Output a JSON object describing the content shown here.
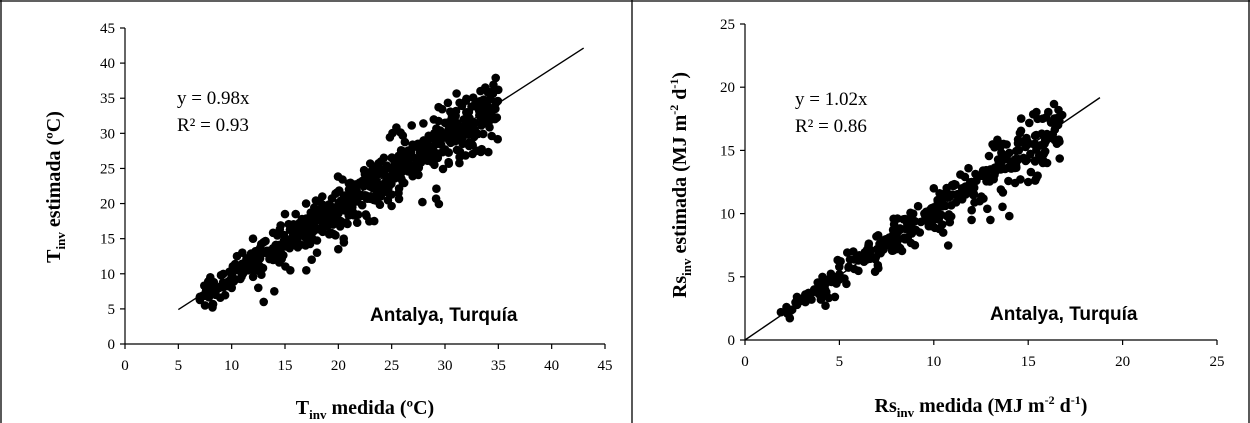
{
  "chart_data": [
    {
      "type": "scatter",
      "xlabel_main": "T",
      "xlabel_sub": "inv",
      "xlabel_rest": " medida (ºC)",
      "ylabel_main": "T",
      "ylabel_sub": "inv",
      "ylabel_rest": " estimada (ºC)",
      "xlim": [
        0,
        45
      ],
      "ylim": [
        0,
        45
      ],
      "xticks": [
        "0",
        "5",
        "10",
        "15",
        "20",
        "25",
        "30",
        "35",
        "40",
        "45"
      ],
      "yticks": [
        "0",
        "5",
        "10",
        "15",
        "20",
        "25",
        "30",
        "35",
        "40",
        "45"
      ],
      "equation": "y = 0.98x",
      "r2": "R² = 0.93",
      "site_label": "Antalya, Turquía",
      "fit_line": {
        "slope": 0.98,
        "x_range": [
          5,
          43
        ]
      },
      "grid": false,
      "point_color": "#000000",
      "n_points": 620,
      "x_range": [
        7,
        35
      ],
      "scatter_sd": 1.6,
      "points": [
        [
          7,
          6.5
        ],
        [
          7.5,
          5.5
        ],
        [
          8,
          9.5
        ],
        [
          8.2,
          5.2
        ],
        [
          8.5,
          7.5
        ],
        [
          9,
          9.8
        ],
        [
          9.5,
          8.5
        ],
        [
          10,
          9
        ],
        [
          10.5,
          12.5
        ],
        [
          11,
          13
        ],
        [
          11.5,
          10.5
        ],
        [
          12,
          15
        ],
        [
          12.5,
          8
        ],
        [
          13,
          6
        ],
        [
          13,
          14.5
        ],
        [
          14,
          7.5
        ],
        [
          15,
          18.5
        ],
        [
          15.5,
          10.5
        ],
        [
          16,
          18.5
        ],
        [
          17,
          10.5
        ],
        [
          17.5,
          12
        ],
        [
          18,
          13
        ],
        [
          18.5,
          21
        ],
        [
          19.5,
          17
        ],
        [
          20,
          13.5
        ],
        [
          20.5,
          15
        ],
        [
          21,
          22
        ],
        [
          22,
          23
        ],
        [
          23,
          24.5
        ],
        [
          24,
          26
        ],
        [
          25,
          26.5
        ],
        [
          26,
          27.5
        ],
        [
          27,
          28
        ],
        [
          28,
          29
        ],
        [
          29,
          30
        ],
        [
          30,
          31.5
        ],
        [
          31,
          32.5
        ],
        [
          32,
          33
        ],
        [
          33,
          34
        ],
        [
          34,
          36
        ],
        [
          35,
          36.2
        ]
      ]
    },
    {
      "type": "scatter",
      "xlabel_main": "Rs",
      "xlabel_sub": "inv",
      "xlabel_rest": " medida (MJ m",
      "xlabel_sup1": "-2",
      "xlabel_mid": " d",
      "xlabel_sup2": "-1",
      "xlabel_end": ")",
      "ylabel_main": "Rs",
      "ylabel_sub": "inv",
      "ylabel_rest": " estimada (MJ m",
      "ylabel_sup1": "-2",
      "ylabel_mid": " d",
      "ylabel_sup2": "-1",
      "ylabel_end": ")",
      "xlim": [
        0,
        25
      ],
      "ylim": [
        0,
        25
      ],
      "xticks": [
        "0",
        "5",
        "10",
        "15",
        "20",
        "25"
      ],
      "yticks": [
        "0",
        "5",
        "10",
        "15",
        "20",
        "25"
      ],
      "equation": "y = 1.02x",
      "r2": "R² = 0.86",
      "site_label": "Antalya, Turquía",
      "fit_line": {
        "slope": 1.02,
        "x_range": [
          0,
          18.8
        ]
      },
      "grid": false,
      "point_color": "#000000",
      "n_points": 360,
      "x_range": [
        2,
        16.8
      ],
      "scatter_sd": 0.85,
      "points": [
        [
          1.9,
          2.2
        ],
        [
          2.2,
          2.6
        ],
        [
          2.5,
          2.4
        ],
        [
          3.2,
          3.0
        ],
        [
          3.6,
          3.8
        ],
        [
          4,
          4.5
        ],
        [
          4.5,
          4.8
        ],
        [
          5,
          5.2
        ],
        [
          5.5,
          5.8
        ],
        [
          6,
          6.3
        ],
        [
          6.5,
          6.8
        ],
        [
          7,
          7.2
        ],
        [
          7.5,
          7.8
        ],
        [
          8,
          8.3
        ],
        [
          8.5,
          8.8
        ],
        [
          9,
          9.4
        ],
        [
          9,
          7.5
        ],
        [
          9.5,
          10
        ],
        [
          10,
          10.5
        ],
        [
          10,
          12
        ],
        [
          10.5,
          8.5
        ],
        [
          11,
          11.5
        ],
        [
          11.5,
          12
        ],
        [
          12,
          12.5
        ],
        [
          12,
          9.5
        ],
        [
          12.5,
          13
        ],
        [
          13,
          13.5
        ],
        [
          13,
          9.5
        ],
        [
          13.5,
          14
        ],
        [
          14,
          9.8
        ],
        [
          14,
          14.8
        ],
        [
          14.5,
          15
        ],
        [
          15,
          15.5
        ],
        [
          15,
          12.5
        ],
        [
          15.5,
          17.5
        ],
        [
          15.5,
          13
        ],
        [
          16,
          14
        ],
        [
          16.5,
          17.5
        ],
        [
          16.8,
          17.8
        ]
      ]
    }
  ]
}
